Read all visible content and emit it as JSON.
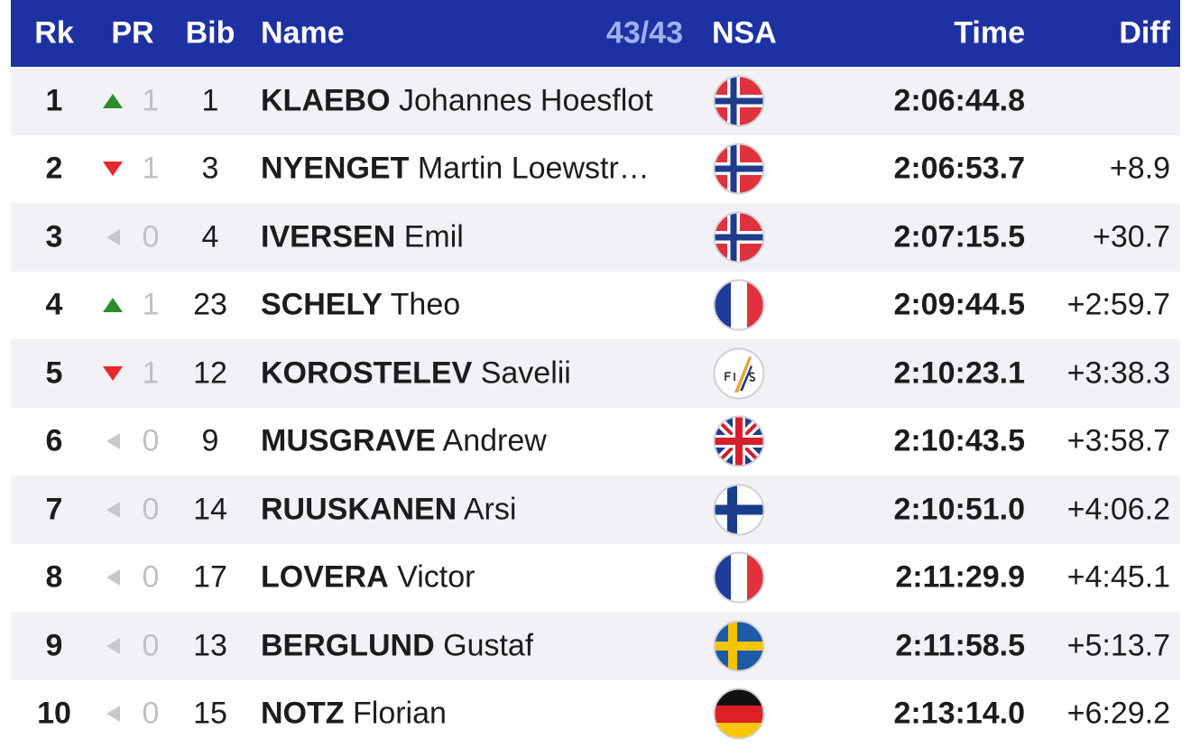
{
  "header": {
    "rk": "Rk",
    "pr": "PR",
    "bib": "Bib",
    "name": "Name",
    "count": "43/43",
    "nsa": "NSA",
    "time": "Time",
    "diff": "Diff"
  },
  "rows": [
    {
      "rank": 1,
      "pr": 1,
      "bib": 1,
      "surname": "KLAEBO",
      "given": "Johannes Hoesflot",
      "time": "2:06:44.8"
    },
    {
      "rank": 2,
      "pr": 1,
      "bib": 3,
      "surname": "NYENGET",
      "given": "Martin Loewstr…",
      "time": "2:06:53.7",
      "diff": "+8.9"
    },
    {
      "rank": 3,
      "pr": 0,
      "bib": 4,
      "surname": "IVERSEN",
      "given": "Emil",
      "time": "2:07:15.5",
      "diff": "+30.7"
    },
    {
      "rank": 4,
      "pr": 1,
      "bib": 23,
      "surname": "SCHELY",
      "given": "Theo",
      "time": "2:09:44.5",
      "diff": "+2:59.7"
    },
    {
      "rank": 5,
      "pr": 1,
      "bib": 12,
      "surname": "KOROSTELEV",
      "given": "Savelii",
      "time": "2:10:23.1",
      "diff": "+3:38.3"
    },
    {
      "rank": 6,
      "pr": 0,
      "bib": 9,
      "surname": "MUSGRAVE",
      "given": "Andrew",
      "time": "2:10:43.5",
      "diff": "+3:58.7"
    },
    {
      "rank": 7,
      "pr": 0,
      "bib": 14,
      "surname": "RUUSKANEN",
      "given": "Arsi",
      "time": "2:10:51.0",
      "diff": "+4:06.2"
    },
    {
      "rank": 8,
      "pr": 0,
      "bib": 17,
      "surname": "LOVERA",
      "given": "Victor",
      "time": "2:11:29.9",
      "diff": "+4:45.1"
    },
    {
      "rank": 9,
      "pr": 0,
      "bib": 13,
      "surname": "BERGLUND",
      "given": "Gustaf",
      "time": "2:11:58.5",
      "diff": "+5:13.7"
    },
    {
      "rank": 10,
      "pr": 0,
      "bib": 15,
      "surname": "NOTZ",
      "given": "Florian",
      "time": "2:13:14.0",
      "diff": "+6:29.2"
    }
  ]
}
